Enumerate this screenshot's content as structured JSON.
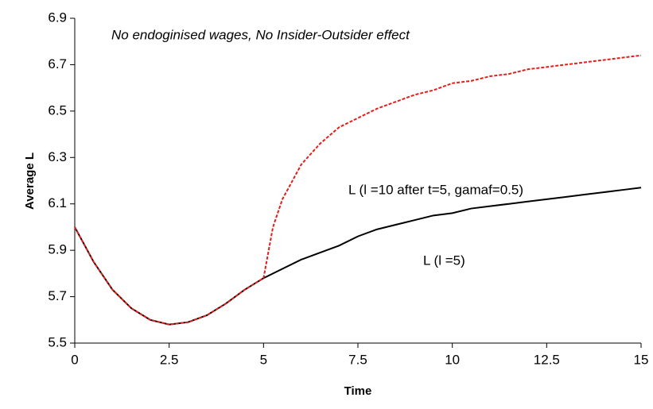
{
  "chart_data": {
    "type": "line",
    "xlabel": "Time",
    "ylabel": "Average L",
    "annotations": [
      "No endoginised wages, No Insider-Outsider effect",
      "L (l =10 after t=5, gamaf=0.5)",
      "L (l =5)"
    ],
    "xlim": [
      0,
      15
    ],
    "xticks": [
      0,
      2.5,
      5,
      7.5,
      10,
      12.5,
      15
    ],
    "ylim": [
      5.5,
      6.9
    ],
    "yticks": [
      5.5,
      5.7,
      5.9,
      6.1,
      6.3,
      6.5,
      6.7,
      6.9
    ],
    "grid": false,
    "series": [
      {
        "name": "L (l =5)",
        "color": "#000000",
        "dash": false,
        "x": [
          0,
          0.5,
          1,
          1.5,
          2,
          2.5,
          3,
          3.5,
          4,
          4.5,
          5,
          5.5,
          6,
          6.5,
          7,
          7.5,
          8,
          8.5,
          9,
          9.5,
          10,
          10.5,
          11,
          11.5,
          12,
          12.5,
          13,
          13.5,
          14,
          14.5,
          15
        ],
        "values": [
          6.0,
          5.85,
          5.73,
          5.65,
          5.6,
          5.58,
          5.59,
          5.62,
          5.67,
          5.73,
          5.78,
          5.82,
          5.86,
          5.89,
          5.92,
          5.96,
          5.99,
          6.01,
          6.03,
          6.05,
          6.06,
          6.08,
          6.09,
          6.1,
          6.11,
          6.12,
          6.13,
          6.14,
          6.15,
          6.16,
          6.17
        ]
      },
      {
        "name": "L (l =10 after t=5, gamaf=0.5)",
        "color": "#e0201b",
        "dash": true,
        "x": [
          0,
          0.5,
          1,
          1.5,
          2,
          2.5,
          3,
          3.5,
          4,
          4.5,
          5,
          5.25,
          5.5,
          6,
          6.5,
          7,
          7.5,
          8,
          8.5,
          9,
          9.5,
          10,
          10.5,
          11,
          11.5,
          12,
          12.5,
          13,
          13.5,
          14,
          14.5,
          15
        ],
        "values": [
          6.0,
          5.85,
          5.73,
          5.65,
          5.6,
          5.58,
          5.59,
          5.62,
          5.67,
          5.73,
          5.78,
          6.0,
          6.12,
          6.27,
          6.36,
          6.43,
          6.47,
          6.51,
          6.54,
          6.57,
          6.59,
          6.62,
          6.63,
          6.65,
          6.66,
          6.68,
          6.69,
          6.7,
          6.71,
          6.72,
          6.73,
          6.74
        ]
      }
    ]
  }
}
